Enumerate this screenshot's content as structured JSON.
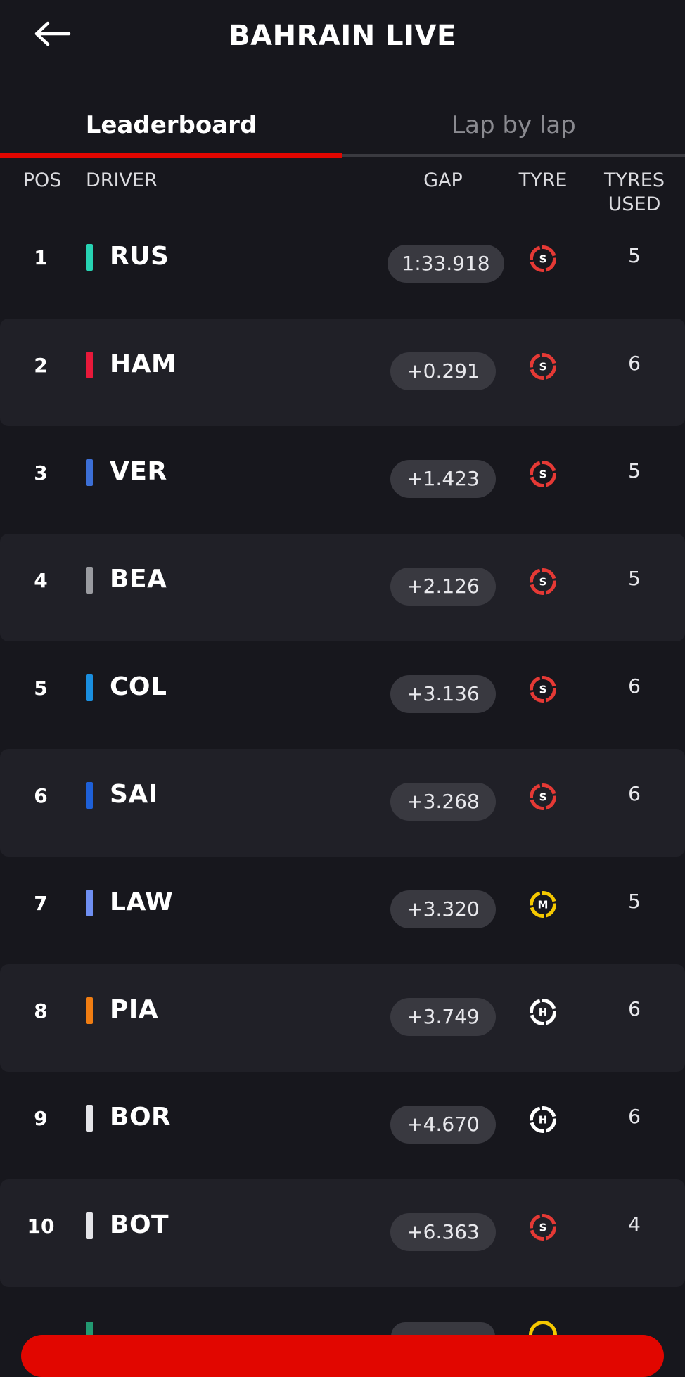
{
  "header": {
    "title": "BAHRAIN LIVE",
    "back_icon": "arrow-left-icon"
  },
  "tabs": [
    {
      "label": "Leaderboard",
      "active": true
    },
    {
      "label": "Lap by lap",
      "active": false
    }
  ],
  "columns": {
    "pos": "POS",
    "driver": "DRIVER",
    "gap": "GAP",
    "tyre": "TYRE",
    "tyres_used_1": "TYRES",
    "tyres_used_2": "USED"
  },
  "colors": {
    "accent": "#e10600",
    "soft": "#e53935",
    "medium": "#f5c800",
    "hard": "#ffffff"
  },
  "rows": [
    {
      "pos": "1",
      "code": "RUS",
      "team_color": "#27d3b3",
      "gap": "1:33.918",
      "tyre": "S",
      "used": "5"
    },
    {
      "pos": "2",
      "code": "HAM",
      "team_color": "#e8193a",
      "gap": "+0.291",
      "tyre": "S",
      "used": "6"
    },
    {
      "pos": "3",
      "code": "VER",
      "team_color": "#3c6fd6",
      "gap": "+1.423",
      "tyre": "S",
      "used": "5"
    },
    {
      "pos": "4",
      "code": "BEA",
      "team_color": "#9a9ba0",
      "gap": "+2.126",
      "tyre": "S",
      "used": "5"
    },
    {
      "pos": "5",
      "code": "COL",
      "team_color": "#1a8fe0",
      "gap": "+3.136",
      "tyre": "S",
      "used": "6"
    },
    {
      "pos": "6",
      "code": "SAI",
      "team_color": "#1e60d8",
      "gap": "+3.268",
      "tyre": "S",
      "used": "6"
    },
    {
      "pos": "7",
      "code": "LAW",
      "team_color": "#6f8ff2",
      "gap": "+3.320",
      "tyre": "M",
      "used": "5"
    },
    {
      "pos": "8",
      "code": "PIA",
      "team_color": "#f07d12",
      "gap": "+3.749",
      "tyre": "H",
      "used": "6"
    },
    {
      "pos": "9",
      "code": "BOR",
      "team_color": "#e4e4e8",
      "gap": "+4.670",
      "tyre": "H",
      "used": "6"
    },
    {
      "pos": "10",
      "code": "BOT",
      "team_color": "#e4e4e8",
      "gap": "+6.363",
      "tyre": "S",
      "used": "4"
    }
  ]
}
